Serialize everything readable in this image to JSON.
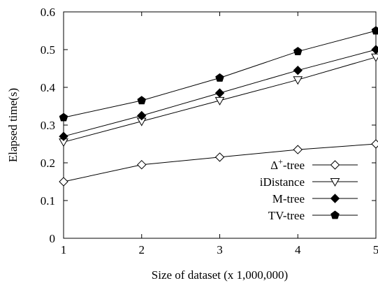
{
  "chart_data": {
    "type": "line",
    "title": "",
    "xlabel": "Size of dataset (x 1,000,000)",
    "ylabel": "Elapsed time(s)",
    "x": [
      1,
      2,
      3,
      4,
      5
    ],
    "xlim": [
      1,
      5
    ],
    "ylim": [
      0,
      0.6
    ],
    "xticks": [
      "1",
      "2",
      "3",
      "4",
      "5"
    ],
    "yticks": [
      "0",
      "0.1",
      "0.2",
      "0.3",
      "0.4",
      "0.5",
      "0.6"
    ],
    "grid": false,
    "legend_position": "bottom-right",
    "series": [
      {
        "name": "Δ+-tree",
        "name_base": "Δ",
        "name_sup": "+",
        "name_rest": "-tree",
        "marker": "diamond-open",
        "values": [
          0.15,
          0.195,
          0.215,
          0.235,
          0.25
        ]
      },
      {
        "name": "iDistance",
        "marker": "triangle-down-open",
        "values": [
          0.255,
          0.31,
          0.365,
          0.42,
          0.48
        ]
      },
      {
        "name": "M-tree",
        "marker": "diamond-filled",
        "values": [
          0.27,
          0.325,
          0.385,
          0.445,
          0.5
        ]
      },
      {
        "name": "TV-tree",
        "marker": "pentagon-filled",
        "values": [
          0.32,
          0.365,
          0.425,
          0.495,
          0.55
        ]
      }
    ]
  }
}
